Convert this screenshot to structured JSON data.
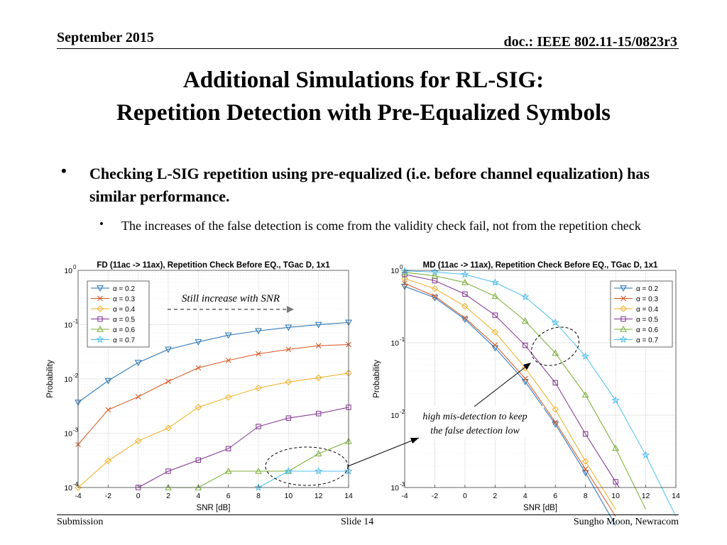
{
  "header": {
    "date": "September 2015",
    "doc": "doc.: IEEE 802.11-15/0823r3"
  },
  "title": {
    "line1": "Additional Simulations for RL-SIG:",
    "line2": "Repetition Detection with Pre-Equalized Symbols"
  },
  "bullets": {
    "main": "Checking L-SIG repetition using pre-equalized (i.e. before channel equalization) has similar performance.",
    "sub": "The increases of the false detection is come from the validity check fail, not from the repetition check"
  },
  "footer": {
    "left": "Submission",
    "center": "Slide 14",
    "right": "Sungho Moon, Newracom"
  },
  "annotations": {
    "fd_note": "Still increase with SNR",
    "md_note_line1": "high mis-detection to keep",
    "md_note_line2": "the false detection low"
  },
  "colors": {
    "a0.2": "#1f6fb4",
    "a0.3": "#d9531e",
    "a0.4": "#f0ad1e",
    "a0.5": "#7e2f8e",
    "a0.6": "#77ac30",
    "a0.7": "#4dbeee"
  },
  "chart_data": [
    {
      "type": "line",
      "title": "FD (11ac -> 11ax), Repetition Check Before EQ., TGac D, 1x1",
      "xlabel": "SNR [dB]",
      "ylabel": "Probability",
      "yscale": "log",
      "xlim": [
        -4,
        14
      ],
      "ylim": [
        0.0001,
        1
      ],
      "xticks": [
        "-4",
        "-2",
        "0",
        "2",
        "4",
        "6",
        "8",
        "10",
        "12",
        "14"
      ],
      "yticks": [
        "10",
        "10",
        "10",
        "10",
        "10"
      ],
      "ytick_exps": [
        "0",
        "-1",
        "-2",
        "-3",
        "-4"
      ],
      "grid": true,
      "legend_position": "top-left",
      "x": [
        -4,
        -2,
        0,
        2,
        4,
        6,
        8,
        10,
        12,
        14
      ],
      "series": [
        {
          "name": "α = 0.2",
          "marker": "triangle-down",
          "color": "#1f6fb4",
          "values": [
            0.0037,
            0.0093,
            0.02,
            0.035,
            0.048,
            0.064,
            0.077,
            0.089,
            0.1,
            0.11
          ]
        },
        {
          "name": "α = 0.3",
          "marker": "x",
          "color": "#d9531e",
          "values": [
            0.00062,
            0.0027,
            0.0047,
            0.009,
            0.016,
            0.022,
            0.029,
            0.035,
            0.041,
            0.043
          ]
        },
        {
          "name": "α = 0.4",
          "marker": "diamond",
          "color": "#f0ad1e",
          "values": [
            0.0001,
            0.00031,
            0.00072,
            0.00125,
            0.003,
            0.0046,
            0.0068,
            0.0088,
            0.0105,
            0.0128
          ]
        },
        {
          "name": "α = 0.5",
          "marker": "square",
          "color": "#7e2f8e",
          "values": [
            null,
            null,
            0.0001,
            0.0002,
            0.00032,
            0.00052,
            0.00133,
            0.0019,
            0.0023,
            0.003
          ]
        },
        {
          "name": "α = 0.6",
          "marker": "triangle-up",
          "color": "#77ac30",
          "values": [
            null,
            null,
            null,
            0.0001,
            0.0001,
            0.0002,
            0.0002,
            0.0002,
            0.00042,
            0.00071
          ]
        },
        {
          "name": "α = 0.7",
          "marker": "star",
          "color": "#4dbeee",
          "values": [
            null,
            null,
            null,
            null,
            null,
            null,
            0.0001,
            0.0002,
            0.0002,
            0.0002
          ]
        }
      ]
    },
    {
      "type": "line",
      "title": "MD (11ac -> 11ax), Repetition Check Before EQ., TGac D, 1x1",
      "xlabel": "SNR [dB]",
      "ylabel": "Probability",
      "yscale": "log",
      "xlim": [
        -4,
        14
      ],
      "ylim": [
        0.001,
        1
      ],
      "xticks": [
        "-4",
        "-2",
        "0",
        "2",
        "4",
        "6",
        "8",
        "10",
        "12",
        "14"
      ],
      "yticks": [
        "10",
        "10",
        "10",
        "10"
      ],
      "ytick_exps": [
        "0",
        "-1",
        "-2",
        "-3"
      ],
      "grid": true,
      "legend_position": "top-right",
      "x": [
        -4,
        -2,
        0,
        2,
        4,
        6,
        8,
        10,
        12,
        14
      ],
      "series": [
        {
          "name": "α = 0.2",
          "marker": "triangle-down",
          "color": "#1f6fb4",
          "values": [
            0.6,
            0.42,
            0.21,
            0.085,
            0.029,
            0.0075,
            0.0016,
            0.0003,
            null,
            null
          ]
        },
        {
          "name": "α = 0.3",
          "marker": "x",
          "color": "#d9531e",
          "values": [
            0.66,
            0.44,
            0.22,
            0.093,
            0.032,
            0.008,
            0.0018,
            0.0004,
            null,
            null
          ]
        },
        {
          "name": "α = 0.4",
          "marker": "diamond",
          "color": "#f0ad1e",
          "values": [
            0.77,
            0.56,
            0.32,
            0.14,
            0.045,
            0.012,
            0.0023,
            0.0005,
            null,
            null
          ]
        },
        {
          "name": "α = 0.5",
          "marker": "square",
          "color": "#7e2f8e",
          "values": [
            0.88,
            0.72,
            0.47,
            0.24,
            0.092,
            0.028,
            0.0055,
            0.0012,
            null,
            null
          ]
        },
        {
          "name": "α = 0.6",
          "marker": "triangle-up",
          "color": "#77ac30",
          "values": [
            0.94,
            0.84,
            0.68,
            0.44,
            0.2,
            0.072,
            0.019,
            0.0035,
            0.0005,
            null
          ]
        },
        {
          "name": "α = 0.7",
          "marker": "star",
          "color": "#4dbeee",
          "values": [
            0.98,
            0.95,
            0.88,
            0.68,
            0.43,
            0.19,
            0.065,
            0.016,
            0.0028,
            0.0004
          ]
        }
      ]
    }
  ]
}
